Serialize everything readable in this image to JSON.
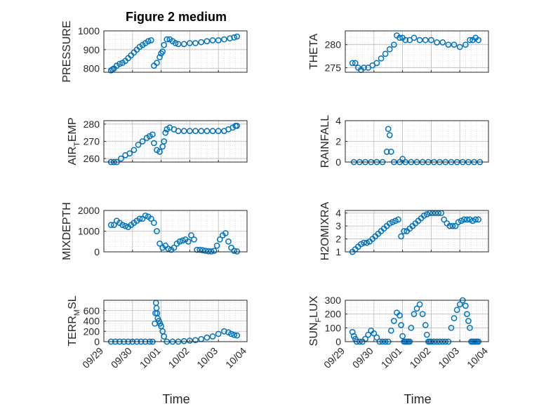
{
  "figure": {
    "title": "Figure 2 medium",
    "xlabel": "Time",
    "marker_color": "#0072bd",
    "xtick_labels": [
      "09/29",
      "09/30",
      "10/01",
      "10/02",
      "10/03",
      "10/04"
    ]
  },
  "chart_data": [
    {
      "type": "scatter",
      "ylabel": "PRESSURE",
      "xlim": [
        0,
        5
      ],
      "ylim": [
        780,
        1000
      ],
      "yticks": [
        800,
        900,
        1000
      ],
      "x": [
        0.25,
        0.3,
        0.35,
        0.45,
        0.55,
        0.65,
        0.75,
        0.85,
        0.95,
        1.05,
        1.15,
        1.25,
        1.35,
        1.45,
        1.55,
        1.65,
        1.75,
        1.85,
        1.95,
        2.0,
        2.05,
        2.1,
        2.2,
        2.3,
        2.4,
        2.5,
        2.6,
        2.8,
        3.0,
        3.2,
        3.4,
        3.6,
        3.8,
        4.0,
        4.2,
        4.4,
        4.55,
        4.65
      ],
      "y": [
        790,
        795,
        800,
        815,
        825,
        830,
        840,
        855,
        870,
        885,
        900,
        915,
        925,
        935,
        945,
        950,
        815,
        830,
        860,
        880,
        890,
        925,
        955,
        955,
        945,
        935,
        930,
        930,
        935,
        935,
        940,
        945,
        950,
        950,
        955,
        960,
        965,
        970
      ]
    },
    {
      "type": "scatter",
      "ylabel": "THETA",
      "xlim": [
        0,
        5
      ],
      "ylim": [
        274,
        283
      ],
      "yticks": [
        275,
        280
      ],
      "x": [
        0.25,
        0.35,
        0.45,
        0.55,
        0.65,
        0.8,
        0.95,
        1.1,
        1.25,
        1.4,
        1.55,
        1.7,
        1.8,
        1.9,
        2.0,
        2.1,
        2.25,
        2.4,
        2.6,
        2.8,
        3.0,
        3.2,
        3.4,
        3.6,
        3.8,
        4.0,
        4.2,
        4.35,
        4.45,
        4.55,
        4.65
      ],
      "y": [
        276,
        276,
        275,
        274.5,
        275,
        275,
        275.5,
        276,
        277,
        278,
        279,
        280,
        282,
        281.5,
        281.5,
        281,
        281,
        281.5,
        281,
        281,
        281,
        280.5,
        280.5,
        280,
        280,
        279.5,
        280,
        281,
        281,
        281.5,
        281
      ]
    },
    {
      "type": "scatter",
      "ylabel": "AIR_TEMP",
      "xlim": [
        0,
        5
      ],
      "ylim": [
        258,
        282
      ],
      "yticks": [
        260,
        270,
        280
      ],
      "x": [
        0.25,
        0.35,
        0.45,
        0.6,
        0.75,
        0.9,
        1.05,
        1.2,
        1.35,
        1.5,
        1.6,
        1.7,
        1.75,
        1.85,
        1.95,
        2.05,
        2.1,
        2.15,
        2.2,
        2.3,
        2.45,
        2.6,
        2.8,
        3.0,
        3.2,
        3.4,
        3.6,
        3.8,
        4.0,
        4.2,
        4.35,
        4.5,
        4.6,
        4.65
      ],
      "y": [
        258,
        258,
        258,
        260,
        262,
        263,
        265,
        268,
        270,
        272,
        273,
        274,
        269,
        265,
        264,
        267,
        270,
        275,
        277,
        278,
        277,
        276,
        276,
        276,
        276,
        276,
        276,
        276,
        276,
        276,
        277,
        278,
        279,
        279
      ]
    },
    {
      "type": "scatter",
      "ylabel": "RAINFALL",
      "xlim": [
        0,
        5
      ],
      "ylim": [
        0,
        4
      ],
      "yticks": [
        0,
        2,
        4
      ],
      "x": [
        0.3,
        0.5,
        0.7,
        0.9,
        1.1,
        1.3,
        1.45,
        1.5,
        1.55,
        1.6,
        1.7,
        1.9,
        2.0,
        2.1,
        2.3,
        2.5,
        2.7,
        2.9,
        3.1,
        3.3,
        3.5,
        3.7,
        3.9,
        4.1,
        4.3,
        4.5,
        4.7
      ],
      "y": [
        0,
        0,
        0,
        0,
        0,
        0,
        1,
        3.2,
        2.6,
        1,
        0,
        0,
        0.3,
        0,
        0,
        0,
        0,
        0,
        0,
        0,
        0,
        0,
        0,
        0,
        0,
        0,
        0
      ]
    },
    {
      "type": "scatter",
      "ylabel": "MIXDEPTH",
      "xlim": [
        0,
        5
      ],
      "ylim": [
        0,
        2000
      ],
      "yticks": [
        0,
        1000,
        2000
      ],
      "x": [
        0.25,
        0.35,
        0.45,
        0.55,
        0.65,
        0.75,
        0.85,
        0.95,
        1.05,
        1.15,
        1.25,
        1.35,
        1.45,
        1.55,
        1.65,
        1.75,
        1.85,
        1.95,
        2.05,
        2.15,
        2.25,
        2.35,
        2.45,
        2.55,
        2.65,
        2.75,
        2.85,
        2.95,
        3.05,
        3.15,
        3.25,
        3.35,
        3.45,
        3.55,
        3.65,
        3.75,
        3.85,
        3.95,
        4.05,
        4.15,
        4.25,
        4.35,
        4.45,
        4.55,
        4.65
      ],
      "y": [
        1300,
        1300,
        1500,
        1400,
        1300,
        1250,
        1200,
        1300,
        1400,
        1500,
        1600,
        1600,
        1750,
        1700,
        1600,
        1400,
        1000,
        400,
        200,
        300,
        150,
        100,
        200,
        400,
        500,
        550,
        600,
        500,
        800,
        600,
        100,
        100,
        80,
        50,
        30,
        20,
        50,
        300,
        600,
        800,
        900,
        500,
        200,
        50,
        20
      ]
    },
    {
      "type": "scatter",
      "ylabel": "H2OMIXRA",
      "xlim": [
        0,
        5
      ],
      "ylim": [
        1,
        4.2
      ],
      "yticks": [
        1,
        2,
        3,
        4
      ],
      "x": [
        0.25,
        0.35,
        0.45,
        0.55,
        0.65,
        0.75,
        0.85,
        0.95,
        1.05,
        1.15,
        1.25,
        1.35,
        1.45,
        1.55,
        1.65,
        1.75,
        1.85,
        1.95,
        2.05,
        2.15,
        2.25,
        2.35,
        2.45,
        2.55,
        2.65,
        2.75,
        2.85,
        2.95,
        3.05,
        3.15,
        3.25,
        3.35,
        3.45,
        3.55,
        3.65,
        3.75,
        3.85,
        3.95,
        4.05,
        4.15,
        4.25,
        4.35,
        4.45,
        4.55,
        4.65
      ],
      "y": [
        1,
        1.2,
        1.4,
        1.6,
        1.7,
        1.7,
        1.8,
        2,
        2.2,
        2.4,
        2.6,
        2.8,
        3,
        3.2,
        3.3,
        3.4,
        3.5,
        2.2,
        2.6,
        2.6,
        2.8,
        3,
        3.2,
        3.4,
        3.6,
        3.8,
        3.9,
        4,
        4,
        4,
        4,
        4,
        3.5,
        3.2,
        3,
        3,
        3,
        3.3,
        3.4,
        3.5,
        3.5,
        3.5,
        3.4,
        3.5,
        3.5
      ]
    },
    {
      "type": "scatter",
      "ylabel": "TERR_MSL",
      "xlim": [
        0,
        5
      ],
      "ylim": [
        0,
        800
      ],
      "yticks": [
        0,
        200,
        400,
        600
      ],
      "x": [
        0.25,
        0.4,
        0.55,
        0.7,
        0.85,
        1.0,
        1.15,
        1.3,
        1.45,
        1.6,
        1.7,
        1.78,
        1.8,
        1.82,
        1.84,
        1.86,
        1.88,
        1.92,
        1.96,
        2.0,
        2.05,
        2.1,
        2.2,
        2.4,
        2.6,
        2.8,
        3.0,
        3.2,
        3.4,
        3.6,
        3.8,
        4.0,
        4.2,
        4.35,
        4.45,
        4.55,
        4.65
      ],
      "y": [
        0,
        0,
        0,
        0,
        0,
        0,
        0,
        0,
        0,
        0,
        0,
        350,
        550,
        750,
        650,
        550,
        450,
        400,
        350,
        300,
        200,
        100,
        0,
        0,
        0,
        10,
        20,
        30,
        50,
        80,
        100,
        150,
        200,
        180,
        150,
        130,
        120
      ]
    },
    {
      "type": "scatter",
      "ylabel": "SUN_FLUX",
      "xlim": [
        0,
        5
      ],
      "ylim": [
        0,
        300
      ],
      "yticks": [
        0,
        100,
        200,
        300
      ],
      "x": [
        0.25,
        0.3,
        0.35,
        0.4,
        0.5,
        0.6,
        0.7,
        0.8,
        0.9,
        1.0,
        1.1,
        1.2,
        1.3,
        1.4,
        1.5,
        1.6,
        1.7,
        1.8,
        1.9,
        1.95,
        2.0,
        2.05,
        2.1,
        2.15,
        2.2,
        2.25,
        2.3,
        2.4,
        2.5,
        2.6,
        2.7,
        2.8,
        2.85,
        2.9,
        2.95,
        3.0,
        3.1,
        3.2,
        3.3,
        3.4,
        3.5,
        3.6,
        3.7,
        3.8,
        3.9,
        4.0,
        4.1,
        4.2,
        4.25,
        4.3,
        4.35,
        4.4,
        4.45,
        4.5,
        4.55,
        4.6,
        4.65
      ],
      "y": [
        70,
        40,
        20,
        0,
        0,
        0,
        20,
        50,
        80,
        60,
        30,
        0,
        0,
        0,
        0,
        80,
        150,
        210,
        190,
        120,
        40,
        0,
        0,
        0,
        0,
        0,
        100,
        200,
        240,
        270,
        200,
        120,
        50,
        0,
        0,
        0,
        0,
        0,
        0,
        0,
        0,
        0,
        100,
        170,
        230,
        270,
        300,
        260,
        200,
        150,
        100,
        0,
        0,
        0,
        0,
        0,
        0
      ]
    }
  ]
}
